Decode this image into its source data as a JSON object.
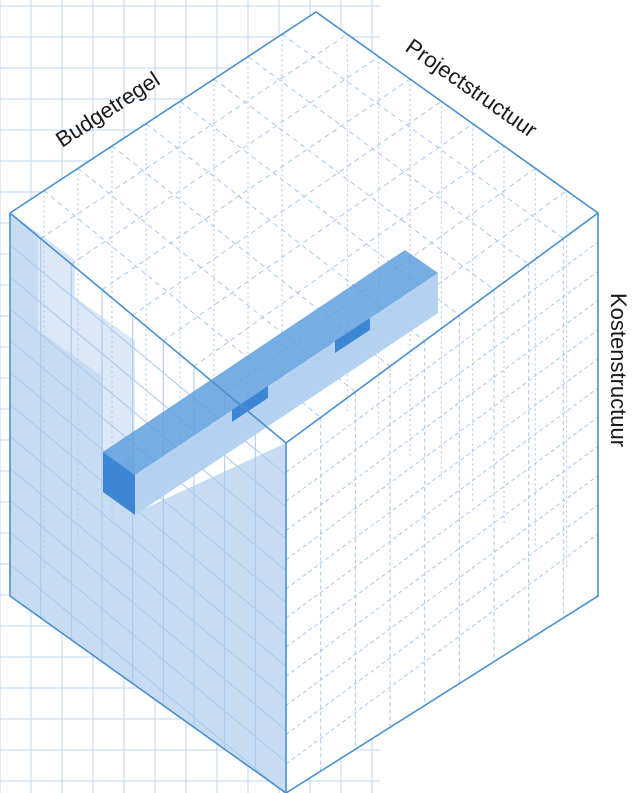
{
  "labels": {
    "budgetregel": "Budgetregel",
    "projectstructuur": "Projectstructuur",
    "kostenstructuur": "Kostenstructuur"
  },
  "colors": {
    "outline": "#4a8fd0",
    "grid": "#a9c8ea",
    "bg_grid": "#bdd5ef",
    "face_fill": "#c7dcf3",
    "face_fill_light": "#dbe8f7",
    "bar_top": "#5f9fdd",
    "bar_front": "#8dbbe8",
    "bar_side": "#b4d2f0",
    "bar_dark": "#3c86d3"
  }
}
